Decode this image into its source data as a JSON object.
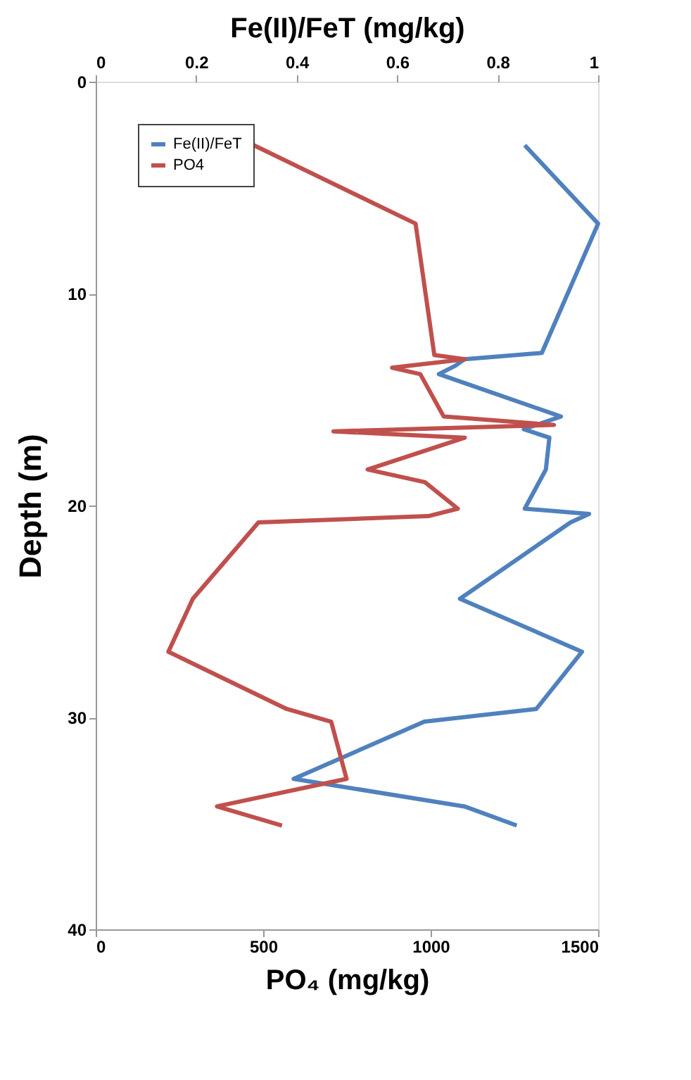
{
  "chart_data": {
    "type": "line",
    "xlabel": "PO₄ (mg/kg)",
    "x2label": "Fe(II)/FeT (mg/kg)",
    "ylabel": "Depth (m)",
    "xlim": [
      0,
      1500
    ],
    "xticks": [
      0,
      500,
      1000,
      1500
    ],
    "x2lim": [
      0,
      1
    ],
    "x2ticks": [
      0,
      0.2,
      0.4,
      0.6,
      0.8,
      1
    ],
    "ylim": [
      40,
      0
    ],
    "yticks": [
      0,
      10,
      20,
      30,
      40
    ],
    "grid": false,
    "legend": "top left",
    "marker": "none",
    "line_style": "solid",
    "series": [
      {
        "name": "Fe(II)/FeT",
        "color": "#4f81bd",
        "axis": "x2",
        "x": [
          0.854,
          1.0,
          0.888,
          0.734,
          0.716,
          0.683,
          0.926,
          0.852,
          0.903,
          0.896,
          0.854,
          0.982,
          0.945,
          0.725,
          0.968,
          0.877,
          0.654,
          0.394,
          0.734,
          0.838
        ],
        "values": [
          3.0,
          6.7,
          12.8,
          13.1,
          13.4,
          13.8,
          15.8,
          16.4,
          16.8,
          18.3,
          20.15,
          20.4,
          20.8,
          24.4,
          26.9,
          29.6,
          30.2,
          32.9,
          34.2,
          35.1
        ]
      },
      {
        "name": "PO4",
        "color": "#c0504d",
        "x": [
          472,
          955,
          1011,
          1102,
          885,
          969,
          1039,
          1368,
          710,
          1102,
          812,
          983,
          1081,
          993,
          486,
          290,
          217,
          570,
          703,
          749,
          362,
          556
        ],
        "values": [
          3.0,
          6.7,
          12.9,
          13.1,
          13.5,
          13.8,
          15.8,
          16.2,
          16.5,
          16.8,
          18.3,
          18.9,
          20.15,
          20.5,
          20.8,
          24.4,
          26.9,
          29.6,
          30.2,
          32.9,
          34.2,
          35.1
        ]
      }
    ]
  }
}
